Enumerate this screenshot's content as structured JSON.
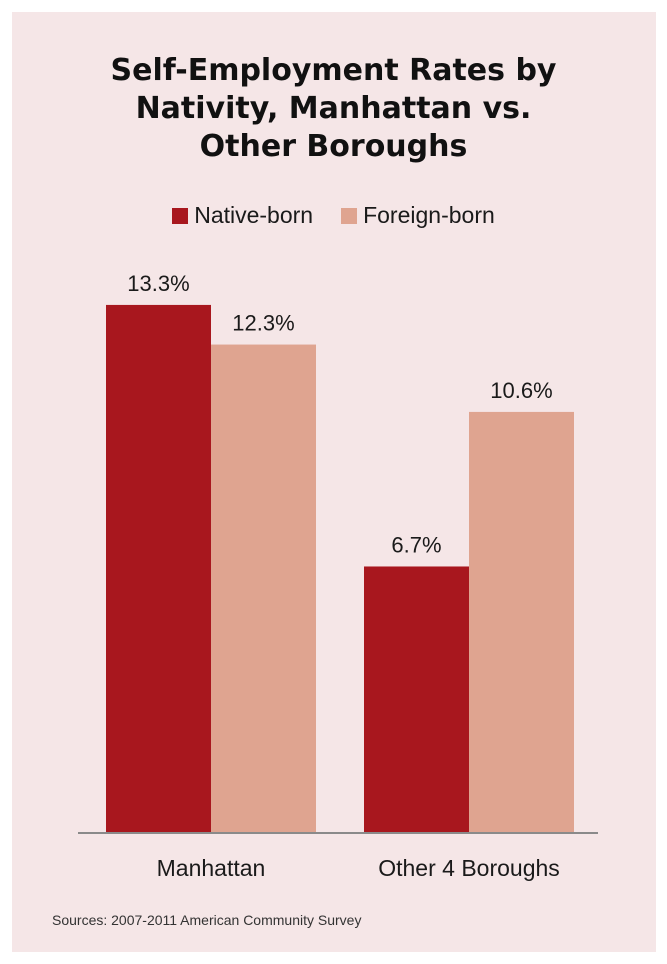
{
  "chart_data": {
    "type": "bar",
    "title_lines": [
      "Self-Employment Rates by",
      "Nativity, Manhattan vs.",
      "Other Boroughs"
    ],
    "categories": [
      "Manhattan",
      "Other 4 Boroughs"
    ],
    "series": [
      {
        "name": "Native-born",
        "color": "#a8171e",
        "values": [
          13.3,
          6.7
        ],
        "labels": [
          "13.3%",
          "6.7%"
        ]
      },
      {
        "name": "Foreign-born",
        "color": "#dfa490",
        "values": [
          12.3,
          10.6
        ],
        "labels": [
          "12.3%",
          "10.6%"
        ]
      }
    ],
    "ylim": [
      0,
      16.2
    ],
    "grid": false,
    "legend_position": "top-center",
    "source": "Sources: 2007-2011 American Community Survey"
  }
}
